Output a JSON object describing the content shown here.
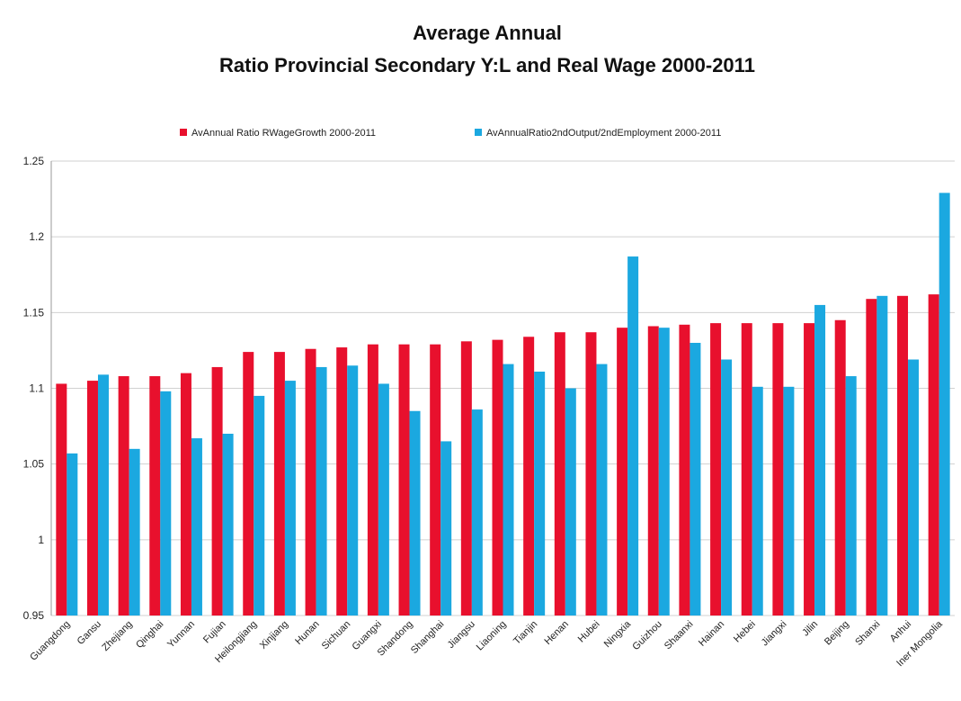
{
  "chart_data": {
    "type": "bar",
    "title": [
      "Average Annual",
      "Ratio Provincial Secondary Y:L and Real Wage 2000-2011"
    ],
    "categories": [
      "Guangdong",
      "Gansu",
      "Zhejiang",
      "Qinghai",
      "Yunnan",
      "Fujian",
      "Heilongjiang",
      "Xinjiang",
      "Hunan",
      "Sichuan",
      "Guangxi",
      "Shandong",
      "Shanghai",
      "Jiangsu",
      "Liaoning",
      "Tianjin",
      "Henan",
      "Hubei",
      "Ningxia",
      "Guizhou",
      "Shaanxi",
      "Hainan",
      "Hebei",
      "Jiangxi",
      "Jilin",
      "Beijing",
      "Shanxi",
      "Anhui",
      "Iner Mongolia"
    ],
    "series": [
      {
        "name": "AvAnnual Ratio RWageGrowth 2000-2011",
        "color": "#e8102d",
        "values": [
          1.103,
          1.105,
          1.108,
          1.108,
          1.11,
          1.114,
          1.124,
          1.124,
          1.126,
          1.127,
          1.129,
          1.129,
          1.129,
          1.131,
          1.132,
          1.134,
          1.137,
          1.137,
          1.14,
          1.141,
          1.142,
          1.143,
          1.143,
          1.143,
          1.143,
          1.145,
          1.159,
          1.161,
          1.162
        ]
      },
      {
        "name": "AvAnnualRatio2ndOutput/2ndEmployment 2000-2011",
        "color": "#1ba8e0",
        "values": [
          1.057,
          1.109,
          1.06,
          1.098,
          1.067,
          1.07,
          1.095,
          1.105,
          1.114,
          1.115,
          1.103,
          1.085,
          1.065,
          1.086,
          1.116,
          1.111,
          1.1,
          1.116,
          1.187,
          1.14,
          1.13,
          1.119,
          1.101,
          1.101,
          1.155,
          1.108,
          1.161,
          1.119,
          1.229
        ]
      }
    ],
    "ylim": [
      0.95,
      1.25
    ],
    "yticks": [
      0.95,
      1,
      1.05,
      1.1,
      1.15,
      1.2,
      1.25
    ],
    "grid": true,
    "legend": "top"
  }
}
